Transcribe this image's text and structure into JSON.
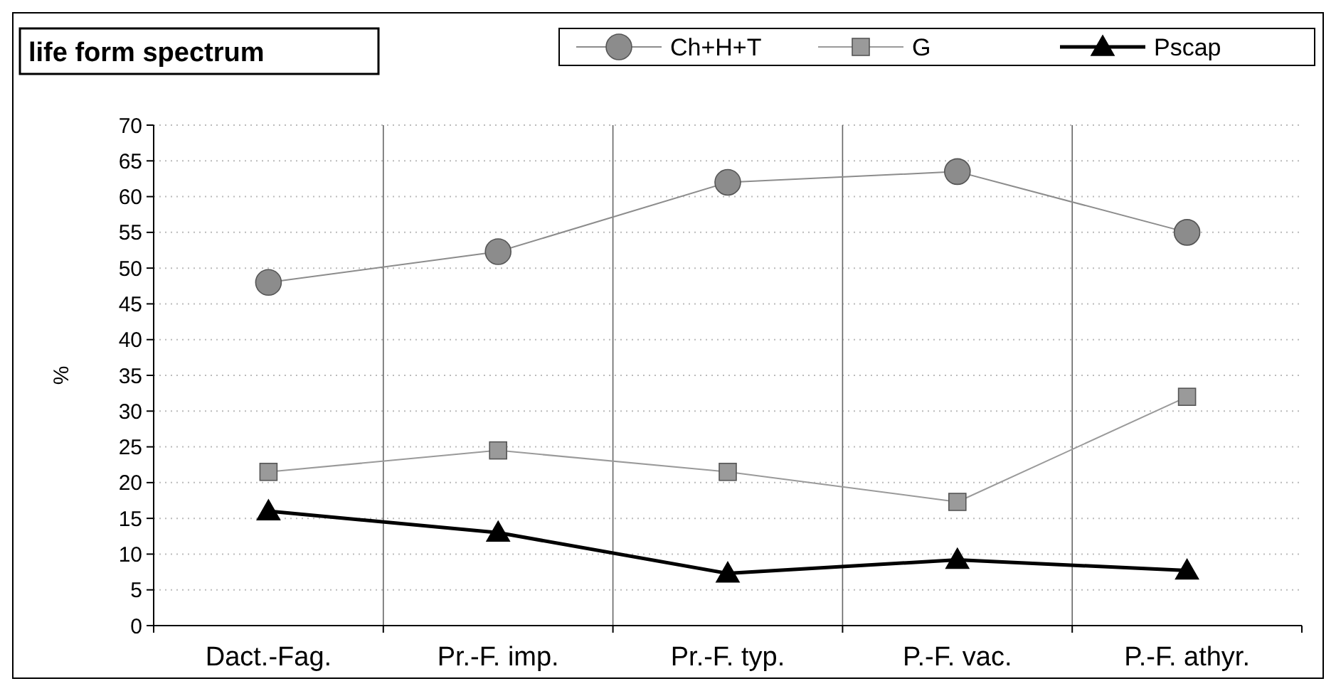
{
  "chart_data": {
    "type": "line",
    "title": "life form spectrum",
    "ylabel": "%",
    "categories": [
      "Dact.-Fag.",
      "Pr.-F. imp.",
      "Pr.-F. typ.",
      "P.-F. vac.",
      "P.-F. athyr."
    ],
    "series": [
      {
        "name": "Ch+H+T",
        "color": "#8c8c8c",
        "marker": "circle",
        "values": [
          48,
          52.3,
          62,
          63.5,
          55
        ]
      },
      {
        "name": "G",
        "color": "#9a9a9a",
        "marker": "square",
        "values": [
          21.5,
          24.5,
          21.5,
          17.3,
          32
        ]
      },
      {
        "name": "Pscap",
        "color": "#000000",
        "marker": "triangle",
        "values": [
          16,
          13,
          7.3,
          9.2,
          7.7
        ]
      }
    ],
    "ylim": [
      0,
      70
    ],
    "yticks": [
      0,
      5,
      10,
      15,
      20,
      25,
      30,
      35,
      40,
      45,
      50,
      55,
      60,
      65,
      70
    ],
    "grid": true,
    "legend": "top right"
  }
}
